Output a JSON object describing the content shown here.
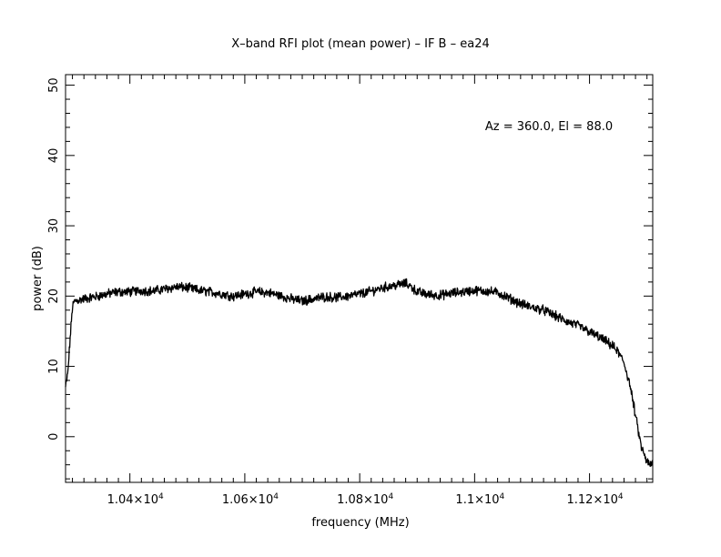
{
  "chart_data": {
    "type": "line",
    "title": "X–band RFI plot (mean power) – IF B – ea24",
    "xlabel": "frequency (MHz)",
    "ylabel": "power (dB)",
    "annotation": "Az = 360.0, El = 88.0",
    "xlim": [
      10288,
      11310
    ],
    "ylim": [
      -6.5,
      51.5
    ],
    "grid": false,
    "x_ticks": [
      {
        "value": 10400,
        "mantissa": "1.04",
        "exp": "4"
      },
      {
        "value": 10600,
        "mantissa": "1.06",
        "exp": "4"
      },
      {
        "value": 10800,
        "mantissa": "1.08",
        "exp": "4"
      },
      {
        "value": 11000,
        "mantissa": "1.1",
        "exp": "4"
      },
      {
        "value": 11200,
        "mantissa": "1.12",
        "exp": "4"
      }
    ],
    "x_times": "×10",
    "y_ticks": [
      0,
      10,
      20,
      30,
      40,
      50
    ],
    "series": [
      {
        "color": "#000000",
        "x": [
          10288,
          10292,
          10296,
          10300,
          10304,
          10310,
          10320,
          10340,
          10360,
          10380,
          10400,
          10420,
          10440,
          10460,
          10480,
          10500,
          10520,
          10540,
          10560,
          10580,
          10600,
          10620,
          10640,
          10660,
          10680,
          10700,
          10720,
          10740,
          10760,
          10780,
          10800,
          10820,
          10840,
          10860,
          10880,
          10890,
          10900,
          10920,
          10940,
          10960,
          10980,
          11000,
          11020,
          11040,
          11060,
          11080,
          11100,
          11120,
          11140,
          11160,
          11180,
          11200,
          11220,
          11240,
          11250,
          11260,
          11270,
          11280,
          11290,
          11300,
          11305,
          11310
        ],
        "y": [
          7.0,
          9.0,
          14.0,
          18.5,
          19.3,
          19.4,
          19.6,
          19.9,
          20.3,
          20.6,
          20.6,
          20.8,
          20.7,
          21.0,
          21.3,
          21.2,
          20.8,
          20.6,
          20.3,
          20.0,
          20.3,
          20.6,
          20.5,
          20.1,
          19.6,
          19.3,
          19.6,
          19.9,
          19.8,
          20.0,
          20.3,
          20.7,
          21.2,
          21.5,
          21.8,
          21.3,
          20.6,
          20.2,
          20.1,
          20.4,
          20.6,
          20.8,
          20.7,
          20.5,
          19.7,
          18.9,
          18.4,
          18.0,
          17.2,
          16.4,
          15.8,
          14.9,
          14.0,
          12.9,
          12.0,
          10.5,
          7.5,
          3.0,
          -1.5,
          -3.6,
          -4.0,
          -3.8
        ]
      }
    ]
  }
}
